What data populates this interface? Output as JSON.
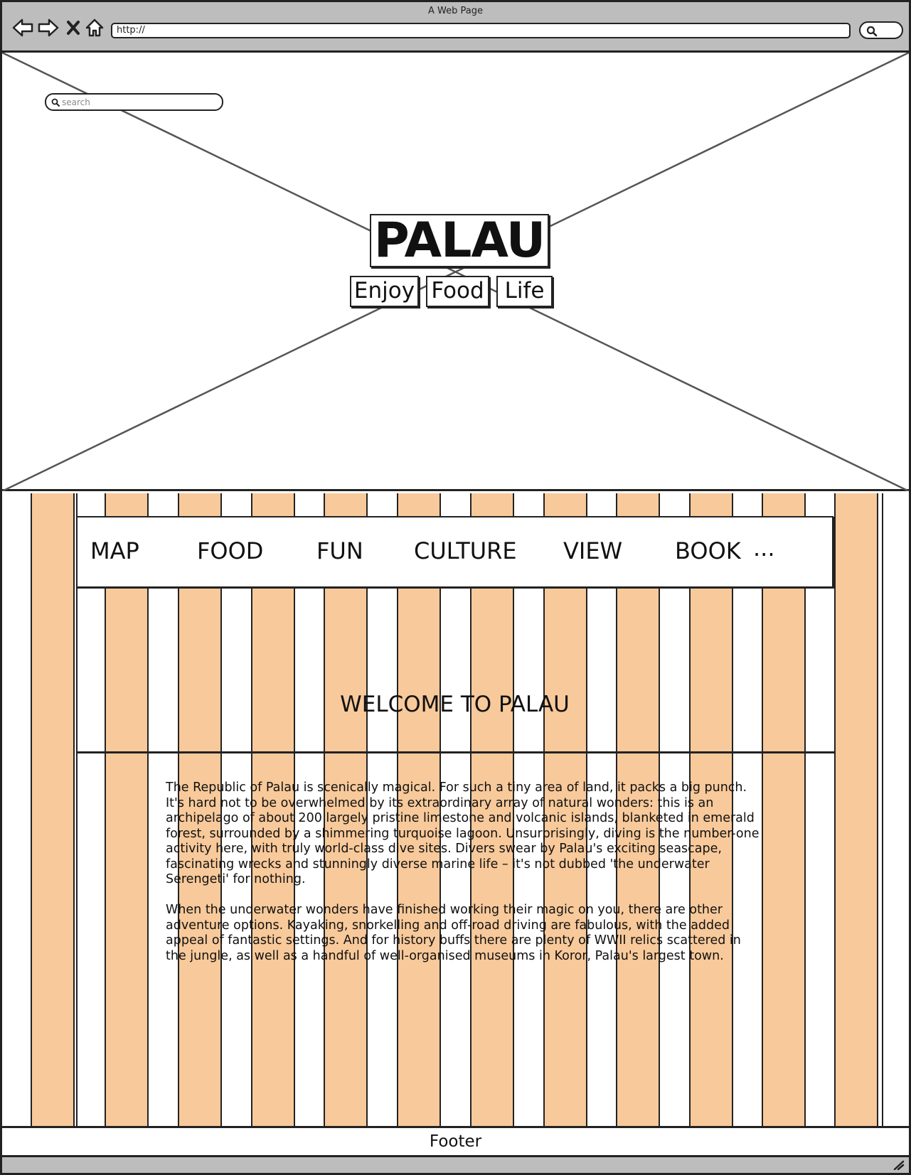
{
  "browser": {
    "window_title": "A Web Page",
    "url": "http://"
  },
  "hero": {
    "search_placeholder": "search",
    "site_title": "PALAU",
    "taglines": [
      "Enjoy",
      "Food",
      "Life"
    ]
  },
  "nav": {
    "items": [
      "MAP",
      "FOOD",
      "FUN",
      "CULTURE",
      "VIEW",
      "BOOK"
    ],
    "more": "..."
  },
  "main": {
    "welcome_title": "WELCOME TO PALAU",
    "paragraphs": [
      "The Republic of Palau is scenically magical. For such a tiny area of land, it packs a big punch. It's hard not to be overwhelmed by its extraordinary array of natural wonders: this is an archipelago of about 200 largely pristine limestone and volcanic islands, blanketed in emerald forest, surrounded by a shimmering turquoise lagoon. Unsurprisingly, diving is the number-one activity here, with truly world-class dive sites. Divers swear by Palau's exciting seascape, fascinating wrecks and stunningly diverse marine life – it's not dubbed 'the underwater Serengeti' for nothing.",
      "When the underwater wonders have finished working their magic on you, there are other adventure options. Kayaking, snorkelling and off-road driving are fabulous, with the added appeal of fantastic settings. And for history buffs there are plenty of WWII relics scattered in the jungle, as well as a handful of well-organised museums in Koror, Palau's largest town."
    ]
  },
  "footer": {
    "label": "Footer"
  },
  "colors": {
    "stripe": "#f8c99a",
    "chrome": "#bdbdbd",
    "line": "#222222"
  },
  "icons": [
    "back-arrow-icon",
    "forward-arrow-icon",
    "close-icon",
    "home-icon",
    "search-icon",
    "resize-grip-icon"
  ]
}
